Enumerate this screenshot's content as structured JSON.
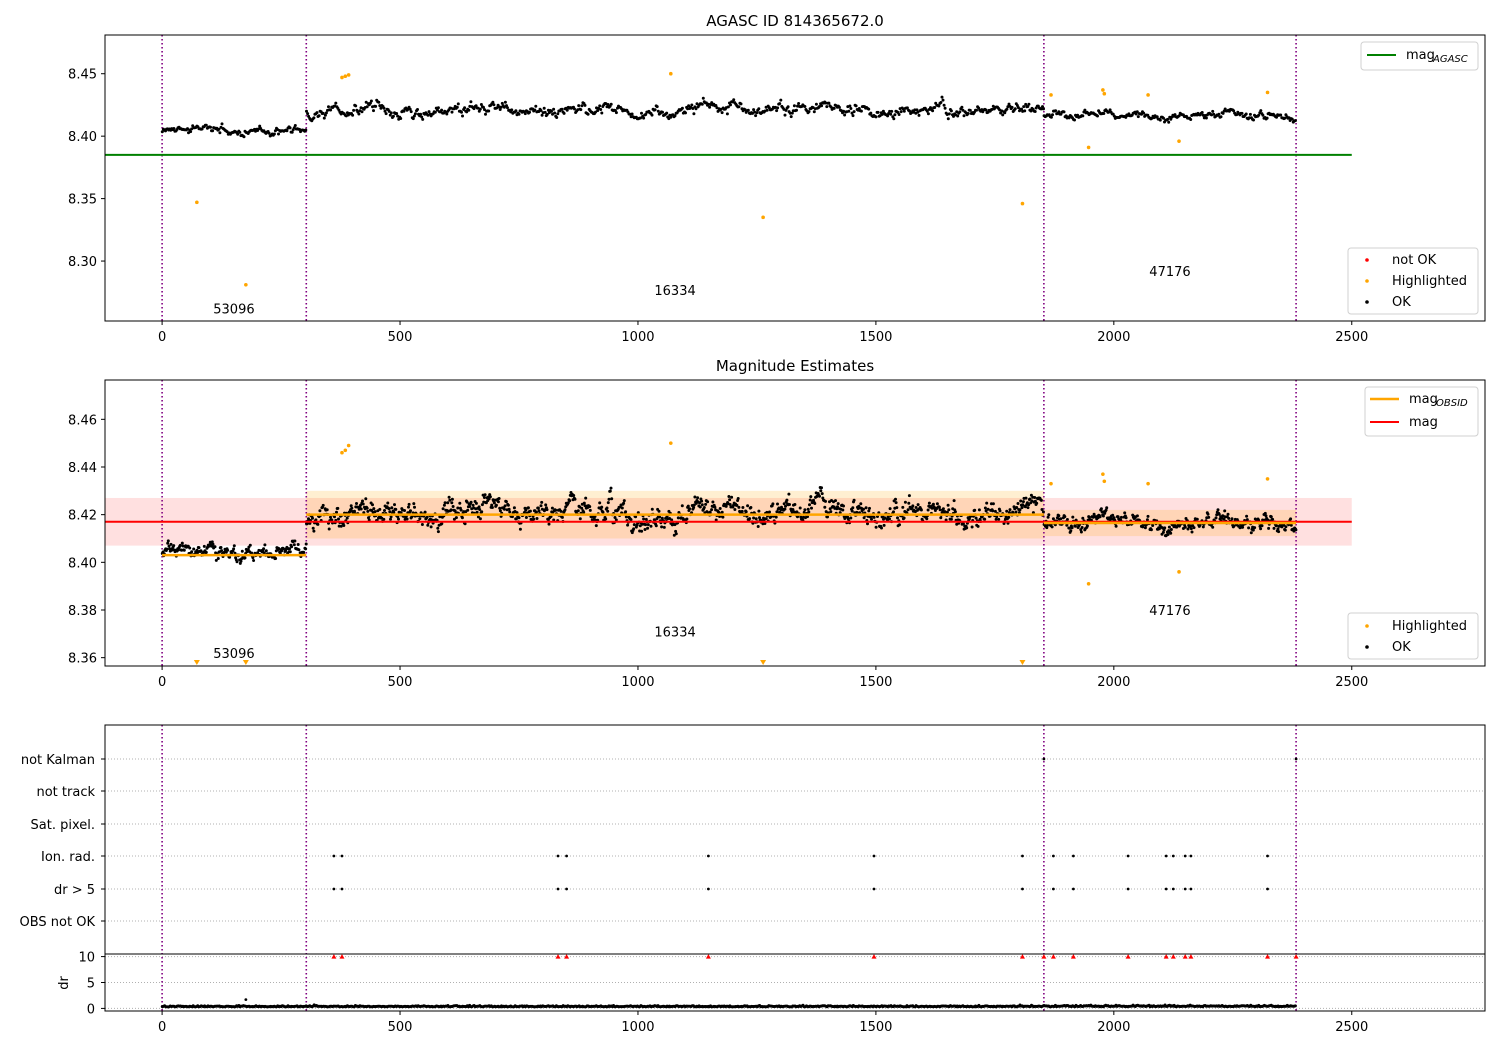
{
  "chart_data": [
    {
      "type": "scatter",
      "title": "AGASC ID 814365672.0",
      "xlim": [
        -120,
        2780
      ],
      "ylim": [
        8.252,
        8.481
      ],
      "x_ticks": [
        0,
        500,
        1000,
        1500,
        2000,
        2500
      ],
      "y_ticks": [
        8.3,
        8.35,
        8.4,
        8.45
      ],
      "y_tick_labels": [
        "8.30",
        "8.35",
        "8.40",
        "8.45"
      ],
      "grid": false,
      "obs_boundaries": [
        0,
        303,
        1853,
        2383
      ],
      "obs_labels": [
        {
          "text": "53096",
          "x": 151,
          "y": 8.262
        },
        {
          "text": "16334",
          "x": 1078,
          "y": 8.277
        },
        {
          "text": "47176",
          "x": 2118,
          "y": 8.292
        }
      ],
      "lines": [
        {
          "name": "mag",
          "sub": "AGASC",
          "color": "#008000",
          "x": [
            -120,
            2500
          ],
          "y": [
            8.385,
            8.385
          ]
        }
      ],
      "ok_segments": [
        {
          "x0": 0,
          "x1": 303,
          "base": 8.404,
          "amp": 0.006
        },
        {
          "x0": 303,
          "x1": 1853,
          "base": 8.421,
          "amp": 0.009
        },
        {
          "x0": 1853,
          "x1": 2383,
          "base": 8.417,
          "amp": 0.006
        }
      ],
      "highlighted": {
        "x": [
          73,
          176,
          378,
          385,
          392,
          1069,
          1263,
          1808,
          1868,
          1947,
          1977,
          1980,
          2072,
          2137,
          2323
        ],
        "y": [
          8.347,
          8.281,
          8.447,
          8.448,
          8.449,
          8.45,
          8.335,
          8.346,
          8.433,
          8.391,
          8.437,
          8.434,
          8.433,
          8.396,
          8.435
        ]
      },
      "not_ok": {
        "x": [],
        "y": []
      },
      "legend_lines": {
        "location": "upper right",
        "entries": [
          "mag",
          "AGASC"
        ]
      },
      "legend_points": {
        "location": "lower right",
        "entries": [
          "not OK",
          "Highlighted",
          "OK"
        ]
      },
      "colors": {
        "ok": "#000000",
        "highlighted": "#ffa500",
        "not_ok": "#ff0000",
        "boundary": "#800080"
      }
    },
    {
      "type": "scatter",
      "title": "Magnitude Estimates",
      "xlim": [
        -120,
        2780
      ],
      "ylim": [
        8.3565,
        8.4765
      ],
      "x_ticks": [
        0,
        500,
        1000,
        1500,
        2000,
        2500
      ],
      "y_ticks": [
        8.36,
        8.38,
        8.4,
        8.42,
        8.44,
        8.46
      ],
      "y_tick_labels": [
        "8.36",
        "8.38",
        "8.40",
        "8.42",
        "8.44",
        "8.46"
      ],
      "grid": false,
      "obs_boundaries": [
        0,
        303,
        1853,
        2383
      ],
      "obs_labels": [
        {
          "text": "53096",
          "x": 151,
          "y": 8.362
        },
        {
          "text": "16334",
          "x": 1078,
          "y": 8.371
        },
        {
          "text": "47176",
          "x": 2118,
          "y": 8.38
        }
      ],
      "bands": [
        {
          "x0": -120,
          "x1": 2500,
          "y0": 8.407,
          "y1": 8.427,
          "color": "#ff0000",
          "opacity": 0.12
        },
        {
          "x0": 303,
          "x1": 1853,
          "y0": 8.41,
          "y1": 8.43,
          "color": "#ffa500",
          "opacity": 0.18
        },
        {
          "x0": 1853,
          "x1": 2383,
          "y0": 8.411,
          "y1": 8.422,
          "color": "#ffa500",
          "opacity": 0.18
        }
      ],
      "lines": [
        {
          "name": "mag",
          "sub": "",
          "color": "#ff0000",
          "x": [
            -120,
            2500
          ],
          "y": [
            8.417,
            8.417
          ]
        },
        {
          "name": "mag",
          "sub": "OBSID",
          "color": "#ffa500",
          "x": [
            0,
            303
          ],
          "y": [
            8.403,
            8.403
          ]
        },
        {
          "name": "mag",
          "sub": "OBSID",
          "color": "#ffa500",
          "x": [
            303,
            1853
          ],
          "y": [
            8.42,
            8.42
          ]
        },
        {
          "name": "mag",
          "sub": "OBSID",
          "color": "#ffa500",
          "x": [
            1853,
            2383
          ],
          "y": [
            8.4165,
            8.4165
          ]
        }
      ],
      "ok_segments": [
        {
          "x0": 0,
          "x1": 303,
          "base": 8.404,
          "amp": 0.006
        },
        {
          "x0": 303,
          "x1": 1853,
          "base": 8.421,
          "amp": 0.009
        },
        {
          "x0": 1853,
          "x1": 2383,
          "base": 8.417,
          "amp": 0.006
        }
      ],
      "highlighted": {
        "x": [
          378,
          385,
          392,
          1069,
          1868,
          1947,
          1977,
          1980,
          2072,
          2137,
          2323
        ],
        "y": [
          8.446,
          8.447,
          8.449,
          8.45,
          8.433,
          8.391,
          8.437,
          8.434,
          8.433,
          8.396,
          8.435
        ]
      },
      "out_of_range": {
        "x": [
          73,
          176,
          1263,
          1808
        ],
        "marker": "triangle-down",
        "color": "#ffa500"
      },
      "legend_lines": {
        "location": "upper right",
        "entries": [
          "mag",
          "OBSID",
          "mag"
        ]
      },
      "legend_points": {
        "location": "lower right",
        "entries": [
          "Highlighted",
          "OK"
        ]
      },
      "colors": {
        "ok": "#000000",
        "highlighted": "#ffa500",
        "boundary": "#800080"
      }
    },
    {
      "type": "scatter",
      "xlim": [
        -120,
        2780
      ],
      "x_ticks": [
        0,
        500,
        1000,
        1500,
        2000,
        2500
      ],
      "flag_rows": [
        "not Kalman",
        "not track",
        "Sat. pixel.",
        "Ion. rad.",
        "dr > 5",
        "OBS not OK"
      ],
      "flag_x": [
        361,
        378,
        832,
        850,
        1148,
        1496,
        1808,
        1853,
        1873,
        1915,
        2030,
        2110,
        2125,
        2150,
        2162,
        2323,
        2383
      ],
      "flag_points": {
        "not Kalman": [
          1853,
          2383
        ],
        "not track": [],
        "Sat. pixel.": [],
        "Ion. rad.": [
          361,
          378,
          832,
          850,
          1148,
          1496,
          1808,
          1873,
          1915,
          2030,
          2110,
          2125,
          2150,
          2162,
          2323
        ],
        "dr > 5": [
          361,
          378,
          832,
          850,
          1148,
          1496,
          1808,
          1873,
          1915,
          2030,
          2110,
          2125,
          2150,
          2162,
          2323
        ],
        "OBS not OK": []
      },
      "dr_panel": {
        "ylabel": "dr",
        "ylim": [
          -0.5,
          10.5
        ],
        "y_ticks": [
          0,
          5,
          10
        ],
        "clipped_x": [
          361,
          378,
          832,
          850,
          1148,
          1496,
          1808,
          1853,
          1873,
          1915,
          2030,
          2110,
          2125,
          2150,
          2162,
          2323,
          2383
        ],
        "clipped_marker": "triangle-up",
        "clipped_color": "#ff0000",
        "dr_typical": 0.3,
        "outlier": {
          "x": 176,
          "y": 1.7
        }
      },
      "grid": "dotted horizontal",
      "obs_boundaries": [
        0,
        303,
        1853,
        2383
      ],
      "colors": {
        "points": "#000000",
        "clipped": "#ff0000",
        "boundary": "#800080",
        "grid": "#b0b0b0"
      }
    }
  ]
}
